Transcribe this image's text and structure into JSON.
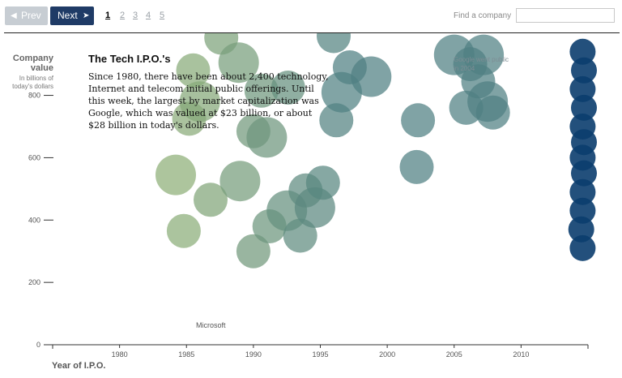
{
  "nav": {
    "prev_label": "Prev",
    "next_label": "Next",
    "prev_arrow": "◀",
    "next_arrow": "➤",
    "pages": [
      "1",
      "2",
      "3",
      "4",
      "5"
    ],
    "current_page": 1
  },
  "search": {
    "label": "Find a company",
    "value": "",
    "placeholder": ""
  },
  "colors": {
    "early": "#8fb077",
    "mid": "#4f7f82",
    "late": "#0b3d6e",
    "next_button": "#1f3b66",
    "prev_button": "#c7cdd3"
  },
  "intro": {
    "title": "The Tech I.P.O.'s",
    "text": "Since 1980, there have been about 2,400 technology, Internet and telecom initial public offerings. Until this week, the largest by market capitalization was Google, which was valued at $23 billion, or about $28 billion in today's dollars."
  },
  "annotations": {
    "microsoft": "Microsoft",
    "google": "Google went public in 2004"
  },
  "chart_data": {
    "type": "scatter",
    "title": "The Tech I.P.O.'s",
    "xlabel": "Year of I.P.O.",
    "ylabel": "Company value",
    "ylabel_sub": "In billions of today's dollars",
    "xlim": [
      1975,
      2015
    ],
    "ylim": [
      0,
      1000
    ],
    "x_ticks": [
      1980,
      1985,
      1990,
      1995,
      2000,
      2005,
      2010
    ],
    "y_ticks": [
      0,
      200,
      400,
      600,
      800
    ],
    "y_tick_labels": [
      "0",
      "200",
      "400",
      "600",
      "800"
    ],
    "grid": false,
    "points": [
      {
        "x": 1984.2,
        "y": 545
      },
      {
        "x": 1984.8,
        "y": 365
      },
      {
        "x": 1986.8,
        "y": 465
      },
      {
        "x": 1989.0,
        "y": 525
      },
      {
        "x": 1990.0,
        "y": 300
      },
      {
        "x": 1991.2,
        "y": 380
      },
      {
        "x": 1992.5,
        "y": 430
      },
      {
        "x": 1993.5,
        "y": 350
      },
      {
        "x": 1993.9,
        "y": 495
      },
      {
        "x": 1994.6,
        "y": 440
      },
      {
        "x": 1995.2,
        "y": 520
      },
      {
        "x": 1985.2,
        "y": 725
      },
      {
        "x": 1986.0,
        "y": 780
      },
      {
        "x": 1985.5,
        "y": 880
      },
      {
        "x": 1987.6,
        "y": 985
      },
      {
        "x": 1988.9,
        "y": 905
      },
      {
        "x": 1990.6,
        "y": 815
      },
      {
        "x": 1990.0,
        "y": 685
      },
      {
        "x": 1991.0,
        "y": 665
      },
      {
        "x": 1992.6,
        "y": 825
      },
      {
        "x": 1996.2,
        "y": 720
      },
      {
        "x": 1996.6,
        "y": 810
      },
      {
        "x": 1996.0,
        "y": 990
      },
      {
        "x": 1997.2,
        "y": 890
      },
      {
        "x": 1998.8,
        "y": 860
      },
      {
        "x": 2002.3,
        "y": 720
      },
      {
        "x": 2002.2,
        "y": 570
      },
      {
        "x": 2005.0,
        "y": 930
      },
      {
        "x": 2006.2,
        "y": 900
      },
      {
        "x": 2006.8,
        "y": 845
      },
      {
        "x": 2007.5,
        "y": 780
      },
      {
        "x": 2005.9,
        "y": 760
      },
      {
        "x": 2007.9,
        "y": 745
      },
      {
        "x": 2007.2,
        "y": 930
      },
      {
        "x": 2014.6,
        "y": 310
      },
      {
        "x": 2014.5,
        "y": 370
      },
      {
        "x": 2014.6,
        "y": 430
      },
      {
        "x": 2014.6,
        "y": 490
      },
      {
        "x": 2014.7,
        "y": 550
      },
      {
        "x": 2014.6,
        "y": 600
      },
      {
        "x": 2014.7,
        "y": 650
      },
      {
        "x": 2014.6,
        "y": 700
      },
      {
        "x": 2014.7,
        "y": 760
      },
      {
        "x": 2014.6,
        "y": 820
      },
      {
        "x": 2014.7,
        "y": 880
      },
      {
        "x": 2014.6,
        "y": 940
      }
    ]
  }
}
